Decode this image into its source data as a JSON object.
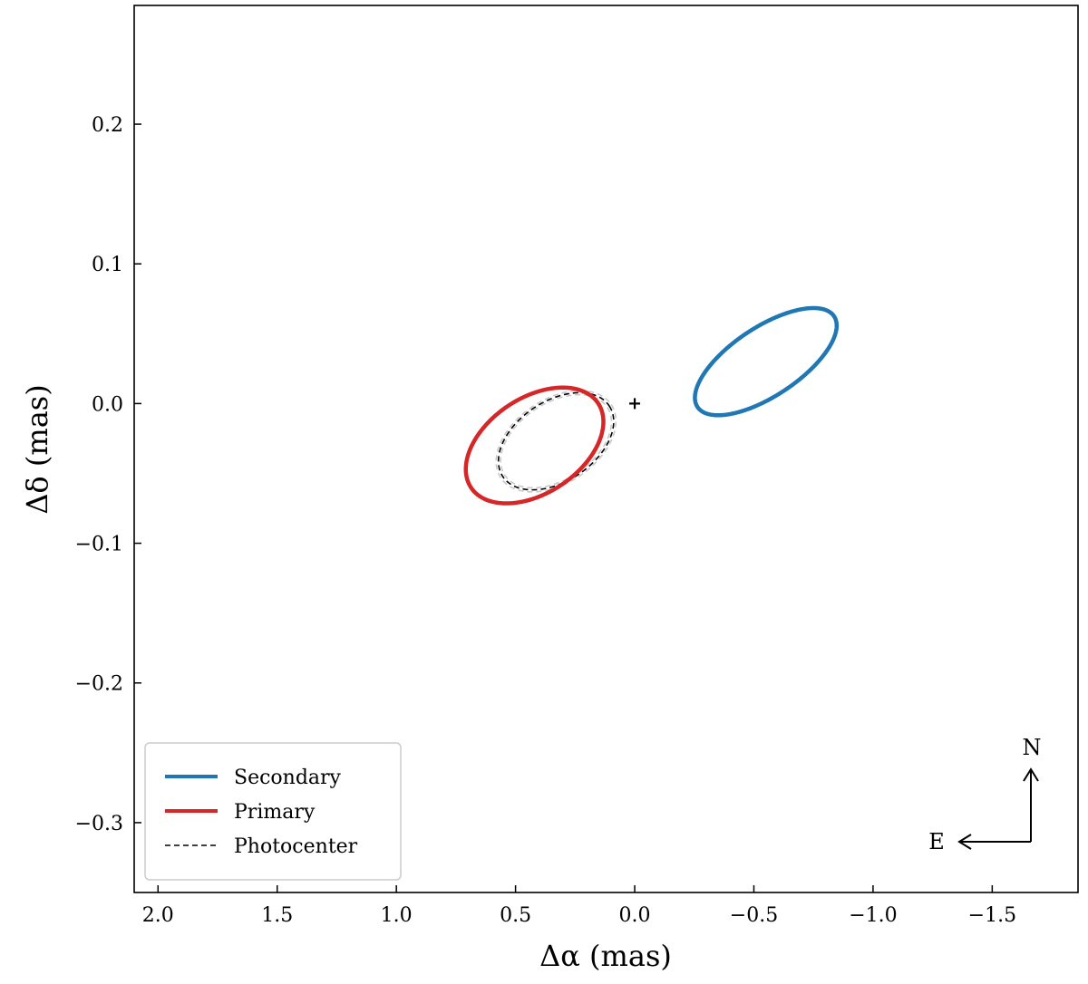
{
  "chart_data": {
    "type": "line",
    "title": "",
    "xlabel": "Δα (mas)",
    "ylabel": "Δδ (mas)",
    "xlim": [
      2.1,
      -1.86
    ],
    "ylim": [
      -0.35,
      0.285
    ],
    "x_inverted": true,
    "grid": false,
    "legend_position": "lower-left",
    "x_ticks": [
      2.0,
      1.5,
      1.0,
      0.5,
      0.0,
      -0.5,
      -1.0,
      -1.5
    ],
    "x_tick_labels": [
      "2.0",
      "1.5",
      "1.0",
      "0.5",
      "0.0",
      "−0.5",
      "−1.0",
      "−1.5"
    ],
    "y_ticks": [
      0.2,
      0.1,
      0.0,
      -0.1,
      -0.2,
      -0.3
    ],
    "y_tick_labels": [
      "0.2",
      "0.1",
      "0.0",
      "−0.1",
      "−0.2",
      "−0.3"
    ],
    "center_marker": {
      "x": 0.0,
      "y": 0.0,
      "symbol": "+"
    },
    "series": [
      {
        "name": "Secondary",
        "color": "#1f77b4",
        "style": "solid",
        "ellipse": {
          "cx": -0.55,
          "cy": 0.03,
          "a": 1.72,
          "b": 0.72,
          "angle_deg": -33.6
        }
      },
      {
        "name": "Primary",
        "color": "#d62728",
        "style": "solid",
        "ellipse": {
          "cx": 0.42,
          "cy": -0.03,
          "a": 1.6,
          "b": 1.0,
          "angle_deg": -33.6
        }
      },
      {
        "name": "Photocenter",
        "color": "#000000",
        "style": "dashed",
        "ellipse": {
          "cx": 0.33,
          "cy": -0.027,
          "a": 1.34,
          "b": 0.84,
          "angle_deg": -33.6
        }
      }
    ],
    "uncertainty_bands": {
      "color": "#c8c8c8",
      "style": "dashed",
      "ellipses": [
        {
          "cx": 0.33,
          "cy": -0.027,
          "a": 1.39,
          "b": 0.88,
          "angle_deg": -33.6
        },
        {
          "cx": 0.33,
          "cy": -0.027,
          "a": 1.29,
          "b": 0.8,
          "angle_deg": -33.6
        }
      ]
    },
    "compass": {
      "north_label": "N",
      "east_label": "E"
    }
  }
}
